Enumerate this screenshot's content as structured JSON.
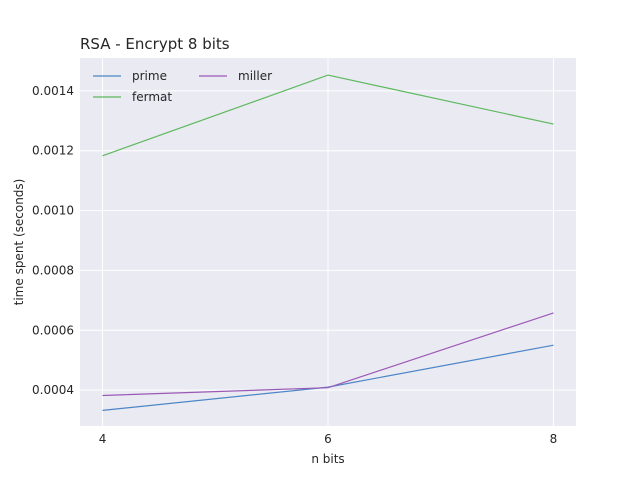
{
  "chart_data": {
    "type": "line",
    "title": "RSA - Encrypt 8 bits",
    "xlabel": "n bits",
    "ylabel": "time spent (seconds)",
    "x": [
      4,
      6,
      8
    ],
    "xlim": [
      3.8,
      8.2
    ],
    "ylim": [
      0.00028,
      0.00151
    ],
    "xticks": [
      4,
      6,
      8
    ],
    "yticks": [
      0.0004,
      0.0006,
      0.0008,
      0.001,
      0.0012,
      0.0014
    ],
    "ytick_labels": [
      "0.0004",
      "0.0006",
      "0.0008",
      "0.0010",
      "0.0012",
      "0.0014"
    ],
    "xtick_labels": [
      "4",
      "6",
      "8"
    ],
    "grid": true,
    "legend_position": "top-left",
    "series": [
      {
        "name": "prime",
        "color": "#4c86c6",
        "values": [
          0.000332,
          0.00041,
          0.00055
        ]
      },
      {
        "name": "fermat",
        "color": "#5cb85c",
        "values": [
          0.001183,
          0.001453,
          0.001289
        ]
      },
      {
        "name": "miller",
        "color": "#9b59b6",
        "values": [
          0.000382,
          0.000408,
          0.000658
        ]
      }
    ],
    "background_color": "#eaeaf2",
    "grid_color": "#ffffff"
  }
}
